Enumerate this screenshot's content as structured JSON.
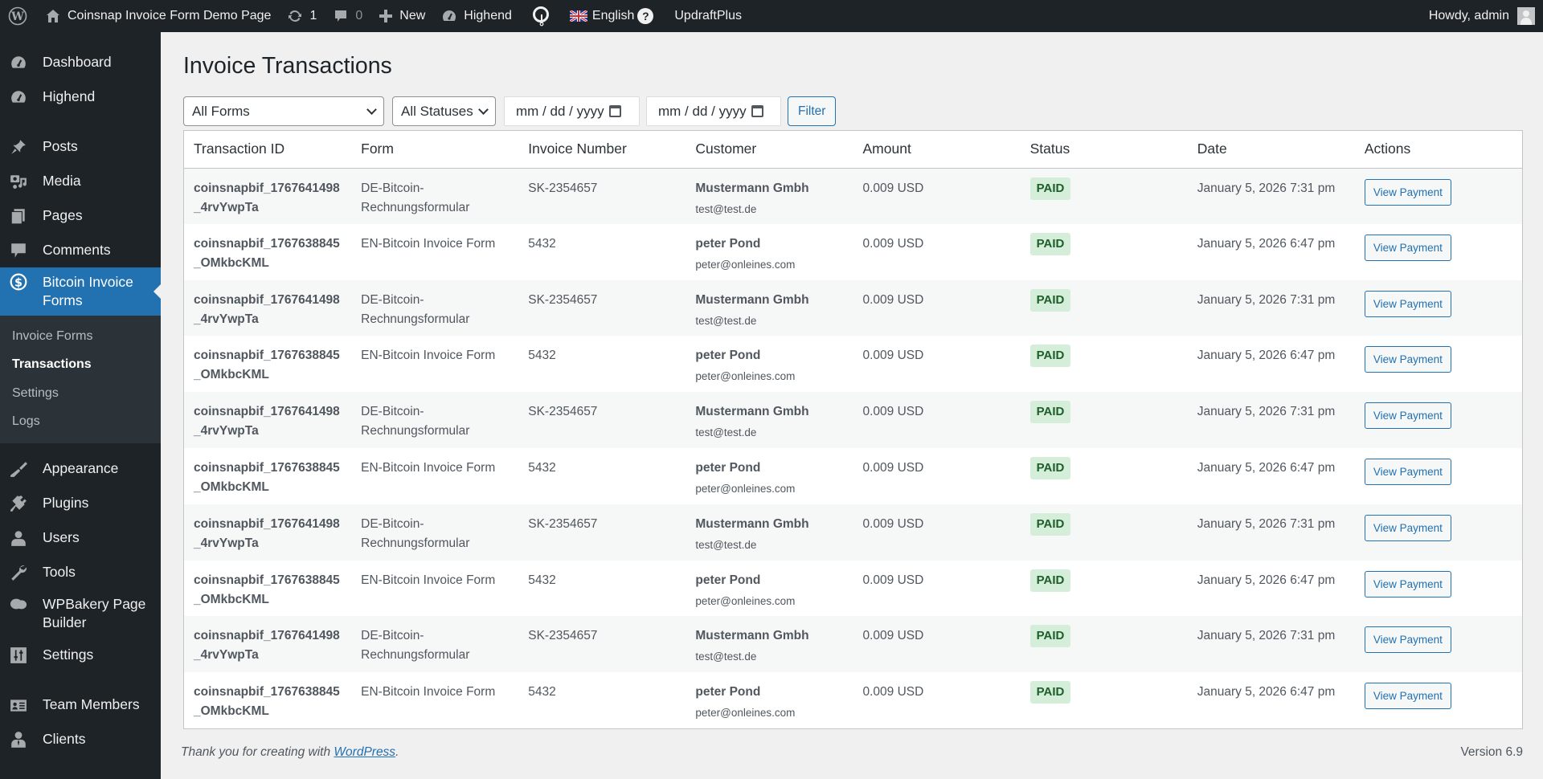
{
  "adminbar": {
    "wp_logo": "wordpress-logo-icon",
    "site_name": "Coinsnap Invoice Form Demo Page",
    "updates_count": "1",
    "comments_count": "0",
    "new_label": "New",
    "highend_label": "Highend",
    "language_label": "English",
    "help_glyph": "?",
    "updraft_label": "UpdraftPlus",
    "howdy": "Howdy, admin"
  },
  "sidebar": {
    "items": [
      {
        "label": "Dashboard",
        "icon": "dashboard-icon"
      },
      {
        "label": "Highend",
        "icon": "gauge-icon"
      },
      {
        "label": "Posts",
        "icon": "pin-icon"
      },
      {
        "label": "Media",
        "icon": "media-icon"
      },
      {
        "label": "Pages",
        "icon": "pages-icon"
      },
      {
        "label": "Comments",
        "icon": "comment-icon"
      },
      {
        "label": "Bitcoin Invoice Forms",
        "icon": "dollar-circle-icon"
      },
      {
        "label": "Appearance",
        "icon": "paintbrush-icon"
      },
      {
        "label": "Plugins",
        "icon": "plug-icon"
      },
      {
        "label": "Users",
        "icon": "user-icon"
      },
      {
        "label": "Tools",
        "icon": "wrench-icon"
      },
      {
        "label": "WPBakery Page Builder",
        "icon": "cloud-icon"
      },
      {
        "label": "Settings",
        "icon": "sliders-icon"
      },
      {
        "label": "Team Members",
        "icon": "id-card-icon"
      },
      {
        "label": "Clients",
        "icon": "businessman-icon"
      }
    ],
    "submenu": [
      {
        "label": "Invoice Forms"
      },
      {
        "label": "Transactions"
      },
      {
        "label": "Settings"
      },
      {
        "label": "Logs"
      }
    ]
  },
  "page": {
    "title": "Invoice Transactions"
  },
  "filters": {
    "form_select": "All Forms",
    "status_select": "All Statuses",
    "date_from_placeholder": "mm / dd / yyyy",
    "date_to_placeholder": "mm / dd / yyyy",
    "filter_button": "Filter"
  },
  "table": {
    "columns": [
      "Transaction ID",
      "Form",
      "Invoice Number",
      "Customer",
      "Amount",
      "Status",
      "Date",
      "Actions"
    ],
    "rows": [
      {
        "id": "coinsnapbif_1767641498_4rvYwpTa",
        "form": "DE-Bitcoin-Rechnungsformular",
        "invoice": "SK-2354657",
        "customer_name": "Mustermann Gmbh",
        "customer_email": "test@test.de",
        "amount": "0.009 USD",
        "status": "PAID",
        "date": "January 5, 2026 7:31 pm",
        "action": "View Payment"
      },
      {
        "id": "coinsnapbif_1767638845_OMkbcKML",
        "form": "EN-Bitcoin Invoice Form",
        "invoice": "5432",
        "customer_name": "peter Pond",
        "customer_email": "peter@onleines.com",
        "amount": "0.009 USD",
        "status": "PAID",
        "date": "January 5, 2026 6:47 pm",
        "action": "View Payment"
      },
      {
        "id": "coinsnapbif_1767641498_4rvYwpTa",
        "form": "DE-Bitcoin-Rechnungsformular",
        "invoice": "SK-2354657",
        "customer_name": "Mustermann Gmbh",
        "customer_email": "test@test.de",
        "amount": "0.009 USD",
        "status": "PAID",
        "date": "January 5, 2026 7:31 pm",
        "action": "View Payment"
      },
      {
        "id": "coinsnapbif_1767638845_OMkbcKML",
        "form": "EN-Bitcoin Invoice Form",
        "invoice": "5432",
        "customer_name": "peter Pond",
        "customer_email": "peter@onleines.com",
        "amount": "0.009 USD",
        "status": "PAID",
        "date": "January 5, 2026 6:47 pm",
        "action": "View Payment"
      },
      {
        "id": "coinsnapbif_1767641498_4rvYwpTa",
        "form": "DE-Bitcoin-Rechnungsformular",
        "invoice": "SK-2354657",
        "customer_name": "Mustermann Gmbh",
        "customer_email": "test@test.de",
        "amount": "0.009 USD",
        "status": "PAID",
        "date": "January 5, 2026 7:31 pm",
        "action": "View Payment"
      },
      {
        "id": "coinsnapbif_1767638845_OMkbcKML",
        "form": "EN-Bitcoin Invoice Form",
        "invoice": "5432",
        "customer_name": "peter Pond",
        "customer_email": "peter@onleines.com",
        "amount": "0.009 USD",
        "status": "PAID",
        "date": "January 5, 2026 6:47 pm",
        "action": "View Payment"
      },
      {
        "id": "coinsnapbif_1767641498_4rvYwpTa",
        "form": "DE-Bitcoin-Rechnungsformular",
        "invoice": "SK-2354657",
        "customer_name": "Mustermann Gmbh",
        "customer_email": "test@test.de",
        "amount": "0.009 USD",
        "status": "PAID",
        "date": "January 5, 2026 7:31 pm",
        "action": "View Payment"
      },
      {
        "id": "coinsnapbif_1767638845_OMkbcKML",
        "form": "EN-Bitcoin Invoice Form",
        "invoice": "5432",
        "customer_name": "peter Pond",
        "customer_email": "peter@onleines.com",
        "amount": "0.009 USD",
        "status": "PAID",
        "date": "January 5, 2026 6:47 pm",
        "action": "View Payment"
      },
      {
        "id": "coinsnapbif_1767641498_4rvYwpTa",
        "form": "DE-Bitcoin-Rechnungsformular",
        "invoice": "SK-2354657",
        "customer_name": "Mustermann Gmbh",
        "customer_email": "test@test.de",
        "amount": "0.009 USD",
        "status": "PAID",
        "date": "January 5, 2026 7:31 pm",
        "action": "View Payment"
      },
      {
        "id": "coinsnapbif_1767638845_OMkbcKML",
        "form": "EN-Bitcoin Invoice Form",
        "invoice": "5432",
        "customer_name": "peter Pond",
        "customer_email": "peter@onleines.com",
        "amount": "0.009 USD",
        "status": "PAID",
        "date": "January 5, 2026 6:47 pm",
        "action": "View Payment"
      }
    ]
  },
  "footer": {
    "thanks_prefix": "Thank you for creating with ",
    "thanks_link": "WordPress",
    "thanks_suffix": ".",
    "version": "Version 6.9"
  },
  "colors": {
    "admin_bg": "#1d2327",
    "accent": "#2271b1",
    "paid_bg": "#d5eeda",
    "paid_text": "#1e5e2a",
    "page_bg": "#f0f0f1"
  }
}
